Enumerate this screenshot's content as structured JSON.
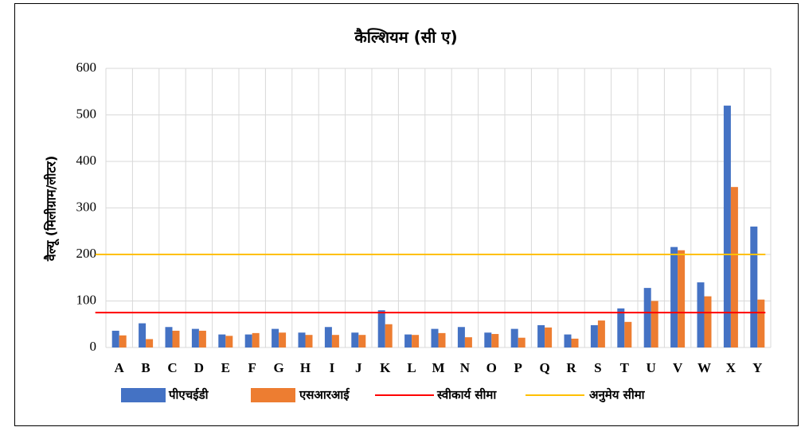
{
  "chart_data": {
    "type": "bar",
    "title": "कैल्शियम (सी ए)",
    "y_label": "वैल्यू (मिलीग्राम/लीटर)",
    "categories": [
      "A",
      "B",
      "C",
      "D",
      "E",
      "F",
      "G",
      "H",
      "I",
      "J",
      "K",
      "L",
      "M",
      "N",
      "O",
      "P",
      "Q",
      "R",
      "S",
      "T",
      "U",
      "V",
      "W",
      "X",
      "Y"
    ],
    "series": [
      {
        "name": "पीएचईडी",
        "color": "#4472c4",
        "values": [
          36,
          52,
          44,
          40,
          28,
          28,
          40,
          32,
          44,
          32,
          80,
          28,
          40,
          44,
          32,
          40,
          48,
          28,
          48,
          84,
          128,
          216,
          140,
          520,
          260
        ]
      },
      {
        "name": "एसआरआई",
        "color": "#ed7d31",
        "values": [
          26,
          18,
          36,
          36,
          25,
          31,
          32,
          27,
          27,
          27,
          50,
          27,
          31,
          22,
          29,
          21,
          43,
          19,
          58,
          55,
          100,
          209,
          110,
          345,
          103
        ]
      }
    ],
    "reference_lines": [
      {
        "name": "स्वीकार्य सीमा",
        "color": "#ff0000",
        "value": 75
      },
      {
        "name": "अनुमेय सीमा",
        "color": "#ffc000",
        "value": 200
      }
    ],
    "ylim": [
      0,
      600
    ],
    "yticks": [
      0,
      100,
      200,
      300,
      400,
      500,
      600
    ],
    "grid": true
  }
}
